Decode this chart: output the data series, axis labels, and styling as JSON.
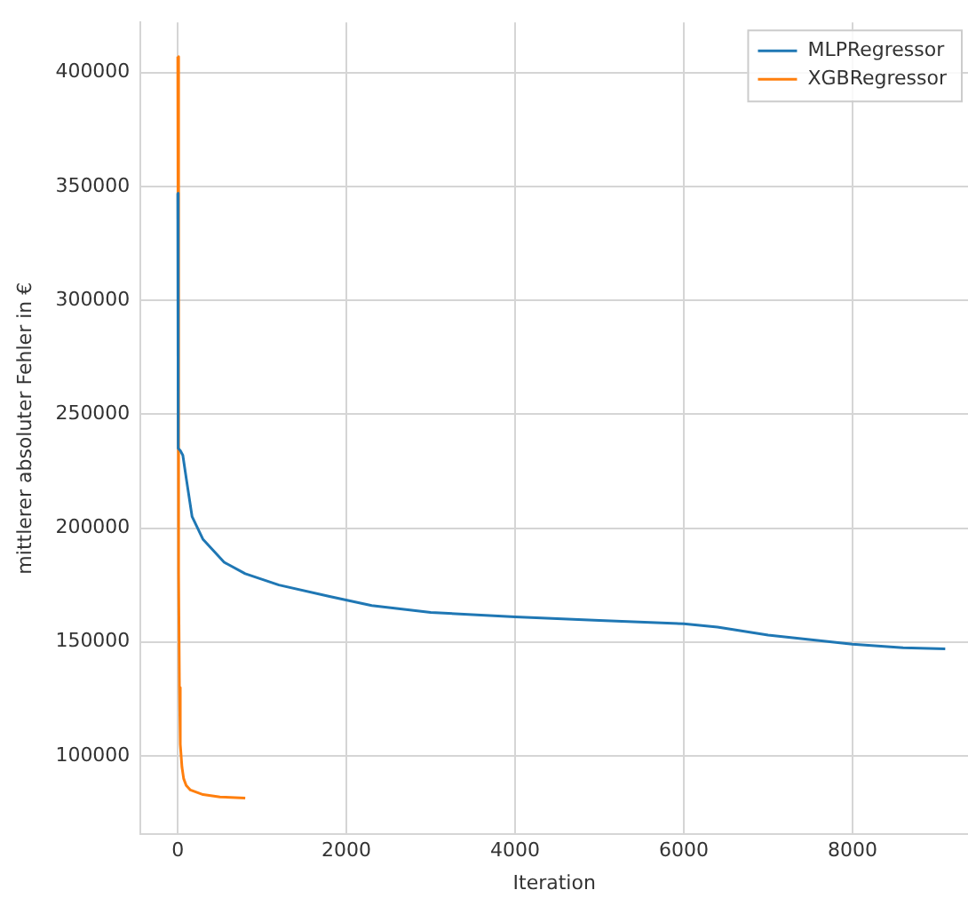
{
  "chart_data": {
    "type": "line",
    "xlabel": "Iteration",
    "ylabel": "mittlerer absoluter Fehler in €",
    "xlim": [
      -440,
      9370
    ],
    "xticks": [
      0,
      2000,
      4000,
      6000,
      8000
    ],
    "ylim": [
      65600,
      422000
    ],
    "yticks": [
      100000,
      150000,
      200000,
      250000,
      300000,
      350000,
      400000
    ],
    "grid": true,
    "legend": "top right",
    "marker": "none",
    "line_style": "solid",
    "series": [
      {
        "name": "MLPRegressor",
        "color": "#1f77b4",
        "x": [
          0,
          5,
          30,
          60,
          100,
          170,
          300,
          550,
          800,
          1200,
          1800,
          2300,
          3000,
          4000,
          5000,
          6000,
          6400,
          7000,
          8000,
          8600,
          9100
        ],
        "values": [
          347000,
          235000,
          234000,
          232000,
          222000,
          205000,
          195000,
          185000,
          180000,
          175000,
          170000,
          166000,
          163000,
          161000,
          159500,
          158000,
          156500,
          153000,
          149000,
          147500,
          147000
        ]
      },
      {
        "name": "XGBRegressor",
        "color": "#ff7f0e",
        "x": [
          0,
          5,
          10,
          15,
          20,
          30,
          50,
          70,
          100,
          150,
          300,
          500,
          800
        ],
        "values": [
          407000,
          330000,
          250000,
          180000,
          130000,
          105000,
          95000,
          90000,
          87000,
          85000,
          83000,
          82000,
          81500
        ]
      }
    ]
  }
}
